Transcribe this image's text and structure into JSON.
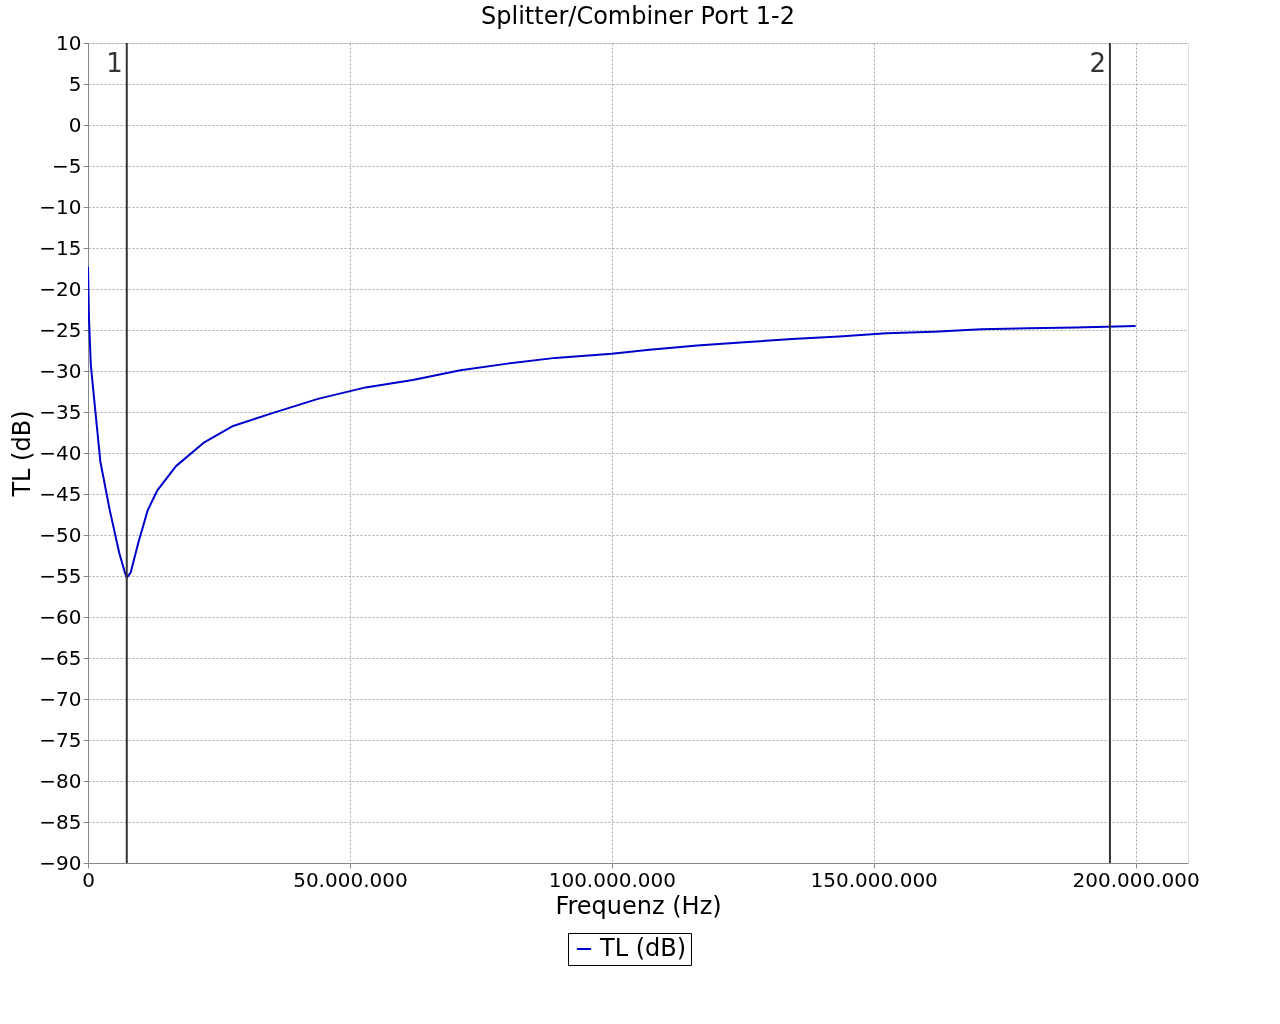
{
  "chart_data": {
    "type": "line",
    "title": "Splitter/Combiner Port 1-2",
    "xlabel": "Frequenz (Hz)",
    "ylabel": "TL (dB)",
    "xlim": [
      0,
      210000000
    ],
    "xticks": [
      0,
      {
        "value": 50000000,
        "label": "50.000.000"
      },
      {
        "value": 100000000,
        "label": "100.000.000"
      },
      {
        "value": 150000000,
        "label": "150.000.000"
      },
      {
        "value": 200000000,
        "label": "200.000.000"
      }
    ],
    "ylim": [
      -90,
      10
    ],
    "yticks": [
      -90,
      -85,
      -80,
      -75,
      -70,
      -65,
      -60,
      -55,
      -50,
      -45,
      -40,
      -35,
      -30,
      -25,
      -20,
      -15,
      -10,
      -5,
      0,
      5,
      10
    ],
    "grid": true,
    "legend": "bottom",
    "marker": "none",
    "line_style": "solid",
    "ref_lines": [
      {
        "axis": "x",
        "value": 7400000,
        "color": "#333333"
      },
      {
        "axis": "x",
        "value": 195100000,
        "color": "#333333"
      }
    ],
    "annotations": [
      {
        "text": "1",
        "x": 7400000,
        "y": 7.5
      },
      {
        "text": "2",
        "x": 195100000,
        "y": 7.5
      }
    ],
    "series": [
      {
        "name": "TL (dB)",
        "color": "#0000cc",
        "x": [
          0,
          180000,
          540000,
          1450000,
          2350000,
          4160000,
          5970000,
          7050000,
          7410000,
          8140000,
          9580000,
          11390000,
          13200000,
          16800000,
          22200000,
          27700000,
          34900000,
          43900000,
          53000000,
          62000000,
          71100000,
          80100000,
          89200000,
          100000000,
          107200000,
          116300000,
          125300000,
          134400000,
          143400000,
          152400000,
          161500000,
          170500000,
          179600000,
          188600000,
          200000000
        ],
        "values": [
          -17.3,
          -23.4,
          -29.3,
          -35.2,
          -41,
          -47,
          -52.2,
          -54.6,
          -55.2,
          -54.6,
          -51,
          -47,
          -44.6,
          -41.6,
          -38.7,
          -36.7,
          -35.2,
          -33.4,
          -32,
          -31.1,
          -29.9,
          -29.1,
          -28.4,
          -27.9,
          -27.4,
          -26.9,
          -26.5,
          -26.1,
          -25.8,
          -25.4,
          -25.2,
          -24.9,
          -24.8,
          -24.7,
          -24.5
        ]
      }
    ]
  }
}
